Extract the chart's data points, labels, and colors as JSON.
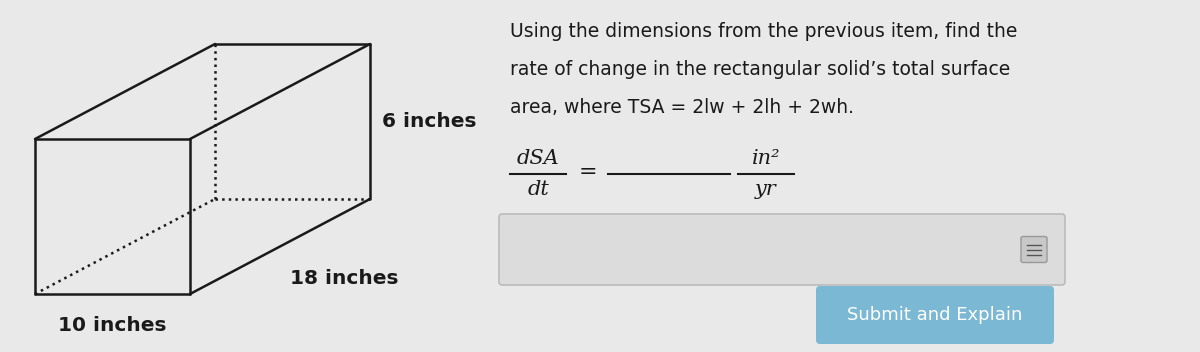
{
  "bg_color": "#e9e9e9",
  "box_label": "10 inches",
  "height_label": "6 inches",
  "depth_label": "18 inches",
  "problem_text_line1": "Using the dimensions from the previous item, find the",
  "problem_text_line2": "rate of change in the rectangular solid’s total surface",
  "problem_text_line3": "area, where TSA = 2lw + 2lh + 2wh.",
  "text_color": "#1a1a1a",
  "button_color": "#7ab8d4",
  "button_text": "Submit and Explain",
  "button_text_color": "#ffffff",
  "input_box_facecolor": "#dcdcdc",
  "input_box_edgecolor": "#bbbbbb"
}
